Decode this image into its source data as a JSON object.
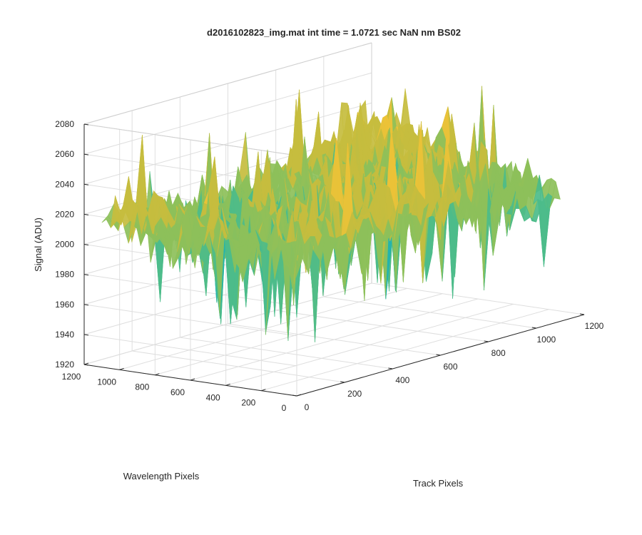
{
  "chart_data": {
    "type": "surface",
    "title": "d2016102823_img.mat int time = 1.0721 sec  NaN nm BS02",
    "xlabel": "Track Pixels",
    "ylabel": "Wavelength Pixels",
    "zlabel": "Signal (ADU)",
    "xlim": [
      0,
      1200
    ],
    "ylim": [
      0,
      1200
    ],
    "zlim": [
      1920,
      2080
    ],
    "x_ticks": [
      "0",
      "200",
      "400",
      "600",
      "800",
      "1000",
      "1200"
    ],
    "y_ticks": [
      "0",
      "200",
      "400",
      "600",
      "800",
      "1000",
      "1200"
    ],
    "z_ticks": [
      "1920",
      "1940",
      "1960",
      "1980",
      "2000",
      "2020",
      "2040",
      "2060",
      "2080"
    ],
    "grid": true,
    "colormap": "parula",
    "surface_extent": {
      "x": [
        0,
        1100
      ],
      "y": [
        0,
        1100
      ]
    },
    "signal_mean": 2010,
    "signal_range_typical": [
      1950,
      2040
    ],
    "signal_min_approx": 1925,
    "signal_max_approx": 2076,
    "surface_colors": [
      "#0072BD",
      "#1a9bd7",
      "#21b3b0",
      "#4cbc8a",
      "#8dc05a",
      "#c6bd3e",
      "#ecc237"
    ]
  }
}
